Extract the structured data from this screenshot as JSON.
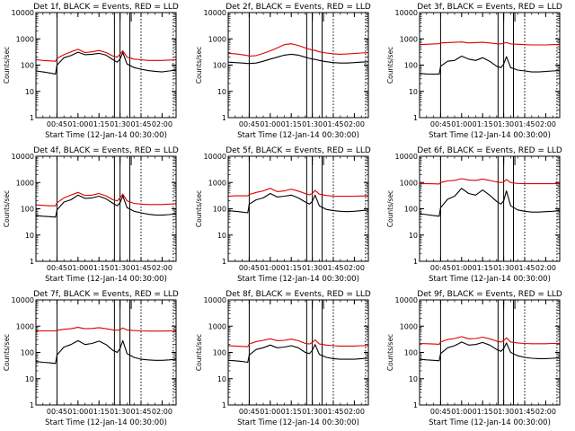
{
  "title_template": "Det {det}, BLACK = Events, RED = LLD",
  "xlabel": "Start Time (12-Jan-14 00:30:00)",
  "ylabel": "Counts/sec",
  "y_ticks": [
    "1",
    "10",
    "100",
    "1000",
    "10000"
  ],
  "x_ticks": [
    "00:45",
    "01:00",
    "01:15",
    "01:30",
    "01:45",
    "02:00"
  ],
  "colors": {
    "events": "#000000",
    "lld": "#dd0000"
  },
  "chart_data": [
    {
      "type": "line",
      "det": "1f",
      "title": "Det 1f, BLACK = Events, RED = LLD",
      "xlabel": "Start Time (12-Jan-14 00:30:00)",
      "ylabel": "Counts/sec",
      "yscale": "log",
      "ylim": [
        1,
        10000
      ],
      "xlim": [
        "00:30",
        "02:10"
      ],
      "x_ticks": [
        "00:45",
        "01:00",
        "01:15",
        "01:30",
        "01:45",
        "02:00"
      ],
      "solid_vlines": [
        "00:45",
        "01:26",
        "01:30",
        "01:37"
      ],
      "dotted_vlines": [
        "01:45",
        "02:08"
      ],
      "flag_marks": [
        "01:30",
        "01:38"
      ],
      "x": [
        "00:30",
        "00:35",
        "00:40",
        "00:44",
        "00:45",
        "00:50",
        "00:55",
        "01:00",
        "01:05",
        "01:10",
        "01:15",
        "01:20",
        "01:25",
        "01:28",
        "01:30",
        "01:32",
        "01:35",
        "01:40",
        "01:45",
        "01:50",
        "01:55",
        "02:00",
        "02:05",
        "02:10"
      ],
      "series": [
        {
          "name": "Events",
          "values": [
            60,
            55,
            50,
            45,
            100,
            190,
            230,
            310,
            250,
            260,
            280,
            240,
            160,
            130,
            170,
            300,
            110,
            80,
            70,
            62,
            58,
            55,
            60,
            65
          ]
        },
        {
          "name": "LLD",
          "values": [
            160,
            150,
            145,
            140,
            180,
            250,
            320,
            400,
            300,
            320,
            360,
            300,
            220,
            200,
            260,
            350,
            200,
            170,
            160,
            150,
            150,
            150,
            155,
            160
          ]
        }
      ]
    },
    {
      "type": "line",
      "det": "2f",
      "title": "Det 2f, BLACK = Events, RED = LLD",
      "xlabel": "Start Time (12-Jan-14 00:30:00)",
      "ylabel": "Counts/sec",
      "yscale": "log",
      "ylim": [
        1,
        10000
      ],
      "xlim": [
        "00:30",
        "02:10"
      ],
      "x_ticks": [
        "00:45",
        "01:00",
        "01:15",
        "01:30",
        "01:45",
        "02:00"
      ],
      "solid_vlines": [
        "00:45",
        "01:26",
        "01:30",
        "01:37"
      ],
      "dotted_vlines": [
        "01:45",
        "02:08"
      ],
      "flag_marks": [
        "01:30",
        "01:38"
      ],
      "x": [
        "00:30",
        "00:35",
        "00:40",
        "00:44",
        "00:45",
        "00:50",
        "00:55",
        "01:00",
        "01:05",
        "01:10",
        "01:15",
        "01:20",
        "01:25",
        "01:28",
        "01:30",
        "01:32",
        "01:35",
        "01:40",
        "01:45",
        "01:50",
        "01:55",
        "02:00",
        "02:05",
        "02:10"
      ],
      "series": [
        {
          "name": "Events",
          "values": [
            130,
            125,
            120,
            115,
            115,
            120,
            140,
            170,
            200,
            240,
            260,
            240,
            200,
            180,
            170,
            165,
            150,
            135,
            125,
            120,
            120,
            125,
            130,
            135
          ]
        },
        {
          "name": "LLD",
          "values": [
            280,
            270,
            250,
            230,
            220,
            230,
            280,
            350,
            450,
            600,
            650,
            560,
            450,
            400,
            380,
            360,
            320,
            290,
            270,
            260,
            265,
            275,
            290,
            300
          ]
        }
      ]
    },
    {
      "type": "line",
      "det": "3f",
      "title": "Det 3f, BLACK = Events, RED = LLD",
      "xlabel": "Start Time (12-Jan-14 00:30:00)",
      "ylabel": "Counts/sec",
      "yscale": "log",
      "ylim": [
        1,
        10000
      ],
      "xlim": [
        "00:30",
        "02:10"
      ],
      "x_ticks": [
        "00:45",
        "01:00",
        "01:15",
        "01:30",
        "01:45",
        "02:00"
      ],
      "solid_vlines": [
        "00:45",
        "01:26",
        "01:30",
        "01:37"
      ],
      "dotted_vlines": [
        "01:45",
        "02:08"
      ],
      "flag_marks": [
        "01:30",
        "01:38"
      ],
      "x": [
        "00:30",
        "00:35",
        "00:40",
        "00:44",
        "00:45",
        "00:50",
        "00:55",
        "01:00",
        "01:05",
        "01:10",
        "01:15",
        "01:20",
        "01:25",
        "01:28",
        "01:30",
        "01:32",
        "01:35",
        "01:40",
        "01:45",
        "01:50",
        "01:55",
        "02:00",
        "02:05",
        "02:10"
      ],
      "series": [
        {
          "name": "Events",
          "values": [
            48,
            46,
            45,
            45,
            90,
            140,
            150,
            220,
            170,
            150,
            190,
            140,
            90,
            80,
            110,
            210,
            80,
            65,
            60,
            55,
            55,
            57,
            60,
            62
          ]
        },
        {
          "name": "LLD",
          "values": [
            600,
            620,
            640,
            650,
            700,
            720,
            740,
            760,
            700,
            720,
            740,
            700,
            650,
            640,
            680,
            720,
            640,
            620,
            600,
            590,
            590,
            590,
            600,
            610
          ]
        }
      ]
    },
    {
      "type": "line",
      "det": "4f",
      "title": "Det 4f, BLACK = Events, RED = LLD",
      "xlabel": "Start Time (12-Jan-14 00:30:00)",
      "ylabel": "Counts/sec",
      "yscale": "log",
      "ylim": [
        1,
        10000
      ],
      "xlim": [
        "00:30",
        "02:10"
      ],
      "x_ticks": [
        "00:45",
        "01:00",
        "01:15",
        "01:30",
        "01:45",
        "02:00"
      ],
      "solid_vlines": [
        "00:45",
        "01:26",
        "01:30",
        "01:37"
      ],
      "dotted_vlines": [
        "01:45",
        "02:08"
      ],
      "flag_marks": [
        "01:30",
        "01:38"
      ],
      "x": [
        "00:30",
        "00:35",
        "00:40",
        "00:44",
        "00:45",
        "00:50",
        "00:55",
        "01:00",
        "01:05",
        "01:10",
        "01:15",
        "01:20",
        "01:25",
        "01:28",
        "01:30",
        "01:32",
        "01:35",
        "01:40",
        "01:45",
        "01:50",
        "01:55",
        "02:00",
        "02:05",
        "02:10"
      ],
      "series": [
        {
          "name": "Events",
          "values": [
            55,
            52,
            50,
            48,
            90,
            180,
            220,
            330,
            250,
            260,
            300,
            240,
            160,
            130,
            170,
            310,
            110,
            80,
            70,
            62,
            58,
            57,
            60,
            65
          ]
        },
        {
          "name": "LLD",
          "values": [
            140,
            135,
            130,
            130,
            170,
            260,
            330,
            420,
            320,
            330,
            380,
            310,
            220,
            200,
            260,
            360,
            200,
            160,
            150,
            145,
            145,
            145,
            150,
            155
          ]
        }
      ]
    },
    {
      "type": "line",
      "det": "5f",
      "title": "Det 5f, BLACK = Events, RED = LLD",
      "xlabel": "Start Time (12-Jan-14 00:30:00)",
      "ylabel": "Counts/sec",
      "yscale": "log",
      "ylim": [
        1,
        10000
      ],
      "xlim": [
        "00:30",
        "02:10"
      ],
      "x_ticks": [
        "00:45",
        "01:00",
        "01:15",
        "01:30",
        "01:45",
        "02:00"
      ],
      "solid_vlines": [
        "00:45",
        "01:26",
        "01:30",
        "01:37"
      ],
      "dotted_vlines": [
        "01:45",
        "02:08"
      ],
      "flag_marks": [
        "01:30",
        "01:38"
      ],
      "x": [
        "00:30",
        "00:35",
        "00:40",
        "00:44",
        "00:45",
        "00:50",
        "00:55",
        "01:00",
        "01:05",
        "01:10",
        "01:15",
        "01:20",
        "01:25",
        "01:28",
        "01:30",
        "01:32",
        "01:35",
        "01:40",
        "01:45",
        "01:50",
        "01:55",
        "02:00",
        "02:05",
        "02:10"
      ],
      "series": [
        {
          "name": "Events",
          "values": [
            85,
            80,
            75,
            70,
            150,
            220,
            260,
            380,
            280,
            300,
            330,
            260,
            180,
            150,
            190,
            330,
            130,
            95,
            85,
            80,
            78,
            80,
            85,
            90
          ]
        },
        {
          "name": "LLD",
          "values": [
            300,
            310,
            310,
            310,
            350,
            420,
            480,
            600,
            450,
            480,
            560,
            470,
            380,
            340,
            380,
            500,
            360,
            320,
            300,
            300,
            300,
            300,
            305,
            310
          ]
        }
      ]
    },
    {
      "type": "line",
      "det": "6f",
      "title": "Det 6f, BLACK = Events, RED = LLD",
      "xlabel": "Start Time (12-Jan-14 00:30:00)",
      "ylabel": "Counts/sec",
      "yscale": "log",
      "ylim": [
        1,
        10000
      ],
      "xlim": [
        "00:30",
        "02:10"
      ],
      "x_ticks": [
        "00:45",
        "01:00",
        "01:15",
        "01:30",
        "01:45",
        "02:00"
      ],
      "solid_vlines": [
        "00:45",
        "01:26",
        "01:30",
        "01:37"
      ],
      "dotted_vlines": [
        "01:45",
        "02:08"
      ],
      "flag_marks": [
        "01:30",
        "01:38"
      ],
      "x": [
        "00:30",
        "00:35",
        "00:40",
        "00:44",
        "00:45",
        "00:50",
        "00:55",
        "01:00",
        "01:05",
        "01:10",
        "01:15",
        "01:20",
        "01:25",
        "01:28",
        "01:30",
        "01:32",
        "01:35",
        "01:40",
        "01:45",
        "01:50",
        "01:55",
        "02:00",
        "02:05",
        "02:10"
      ],
      "series": [
        {
          "name": "Events",
          "values": [
            65,
            60,
            55,
            52,
            110,
            230,
            300,
            600,
            380,
            330,
            520,
            330,
            190,
            150,
            200,
            480,
            130,
            90,
            80,
            75,
            75,
            78,
            80,
            85
          ]
        },
        {
          "name": "LLD",
          "values": [
            900,
            900,
            890,
            880,
            1000,
            1150,
            1200,
            1400,
            1250,
            1200,
            1350,
            1200,
            1050,
            1000,
            1050,
            1300,
            1000,
            920,
            900,
            900,
            900,
            900,
            900,
            910
          ]
        }
      ]
    },
    {
      "type": "line",
      "det": "7f",
      "title": "Det 7f, BLACK = Events, RED = LLD",
      "xlabel": "Start Time (12-Jan-14 00:30:00)",
      "ylabel": "Counts/sec",
      "yscale": "log",
      "ylim": [
        1,
        10000
      ],
      "xlim": [
        "00:30",
        "02:10"
      ],
      "x_ticks": [
        "00:45",
        "01:00",
        "01:15",
        "01:30",
        "01:45",
        "02:00"
      ],
      "solid_vlines": [
        "00:45",
        "01:26",
        "01:30",
        "01:37"
      ],
      "dotted_vlines": [
        "01:45",
        "02:08"
      ],
      "flag_marks": [
        "01:30",
        "01:38"
      ],
      "x": [
        "00:30",
        "00:35",
        "00:40",
        "00:44",
        "00:45",
        "00:50",
        "00:55",
        "01:00",
        "01:05",
        "01:10",
        "01:15",
        "01:20",
        "01:25",
        "01:28",
        "01:30",
        "01:32",
        "01:35",
        "01:40",
        "01:45",
        "01:50",
        "01:55",
        "02:00",
        "02:05",
        "02:10"
      ],
      "series": [
        {
          "name": "Events",
          "values": [
            45,
            42,
            40,
            38,
            80,
            160,
            200,
            280,
            200,
            220,
            270,
            200,
            120,
            100,
            140,
            280,
            90,
            65,
            55,
            52,
            50,
            50,
            52,
            55
          ]
        },
        {
          "name": "LLD",
          "values": [
            650,
            660,
            660,
            660,
            700,
            760,
            800,
            900,
            800,
            820,
            880,
            800,
            720,
            700,
            740,
            850,
            720,
            680,
            660,
            650,
            650,
            650,
            655,
            660
          ]
        }
      ]
    },
    {
      "type": "line",
      "det": "8f",
      "title": "Det 8f, BLACK = Events, RED = LLD",
      "xlabel": "Start Time (12-Jan-14 00:30:00)",
      "ylabel": "Counts/sec",
      "yscale": "log",
      "ylim": [
        1,
        10000
      ],
      "xlim": [
        "00:30",
        "02:10"
      ],
      "x_ticks": [
        "00:45",
        "01:00",
        "01:15",
        "01:30",
        "01:45",
        "02:00"
      ],
      "solid_vlines": [
        "00:45",
        "01:26",
        "01:30",
        "01:37"
      ],
      "dotted_vlines": [
        "01:45",
        "02:08"
      ],
      "flag_marks": [
        "01:30",
        "01:38"
      ],
      "x": [
        "00:30",
        "00:35",
        "00:40",
        "00:44",
        "00:45",
        "00:50",
        "00:55",
        "01:00",
        "01:05",
        "01:10",
        "01:15",
        "01:20",
        "01:25",
        "01:28",
        "01:30",
        "01:32",
        "01:35",
        "01:40",
        "01:45",
        "01:50",
        "01:55",
        "02:00",
        "02:05",
        "02:10"
      ],
      "series": [
        {
          "name": "Events",
          "values": [
            50,
            48,
            45,
            42,
            80,
            130,
            150,
            190,
            150,
            160,
            180,
            150,
            100,
            90,
            120,
            200,
            85,
            65,
            58,
            55,
            55,
            55,
            58,
            60
          ]
        },
        {
          "name": "LLD",
          "values": [
            180,
            175,
            170,
            165,
            210,
            260,
            290,
            330,
            280,
            290,
            320,
            280,
            220,
            210,
            240,
            300,
            210,
            190,
            180,
            175,
            175,
            175,
            180,
            180
          ]
        }
      ]
    },
    {
      "type": "line",
      "det": "9f",
      "title": "Det 9f, BLACK = Events, RED = LLD",
      "xlabel": "Start Time (12-Jan-14 00:30:00)",
      "ylabel": "Counts/sec",
      "yscale": "log",
      "ylim": [
        1,
        10000
      ],
      "xlim": [
        "00:30",
        "02:10"
      ],
      "x_ticks": [
        "00:45",
        "01:00",
        "01:15",
        "01:30",
        "01:45",
        "02:00"
      ],
      "solid_vlines": [
        "00:45",
        "01:26",
        "01:30",
        "01:37"
      ],
      "dotted_vlines": [
        "01:45",
        "02:08"
      ],
      "flag_marks": [
        "01:30",
        "01:38"
      ],
      "x": [
        "00:30",
        "00:35",
        "00:40",
        "00:44",
        "00:45",
        "00:50",
        "00:55",
        "01:00",
        "01:05",
        "01:10",
        "01:15",
        "01:20",
        "01:25",
        "01:28",
        "01:30",
        "01:32",
        "01:35",
        "01:40",
        "01:45",
        "01:50",
        "01:55",
        "02:00",
        "02:05",
        "02:10"
      ],
      "series": [
        {
          "name": "Events",
          "values": [
            55,
            52,
            50,
            48,
            90,
            150,
            180,
            250,
            190,
            200,
            240,
            190,
            130,
            110,
            140,
            230,
            100,
            75,
            65,
            60,
            58,
            58,
            60,
            62
          ]
        },
        {
          "name": "LLD",
          "values": [
            220,
            215,
            210,
            205,
            250,
            310,
            340,
            400,
            330,
            340,
            380,
            330,
            270,
            250,
            280,
            360,
            250,
            230,
            220,
            215,
            215,
            215,
            220,
            220
          ]
        }
      ]
    }
  ]
}
